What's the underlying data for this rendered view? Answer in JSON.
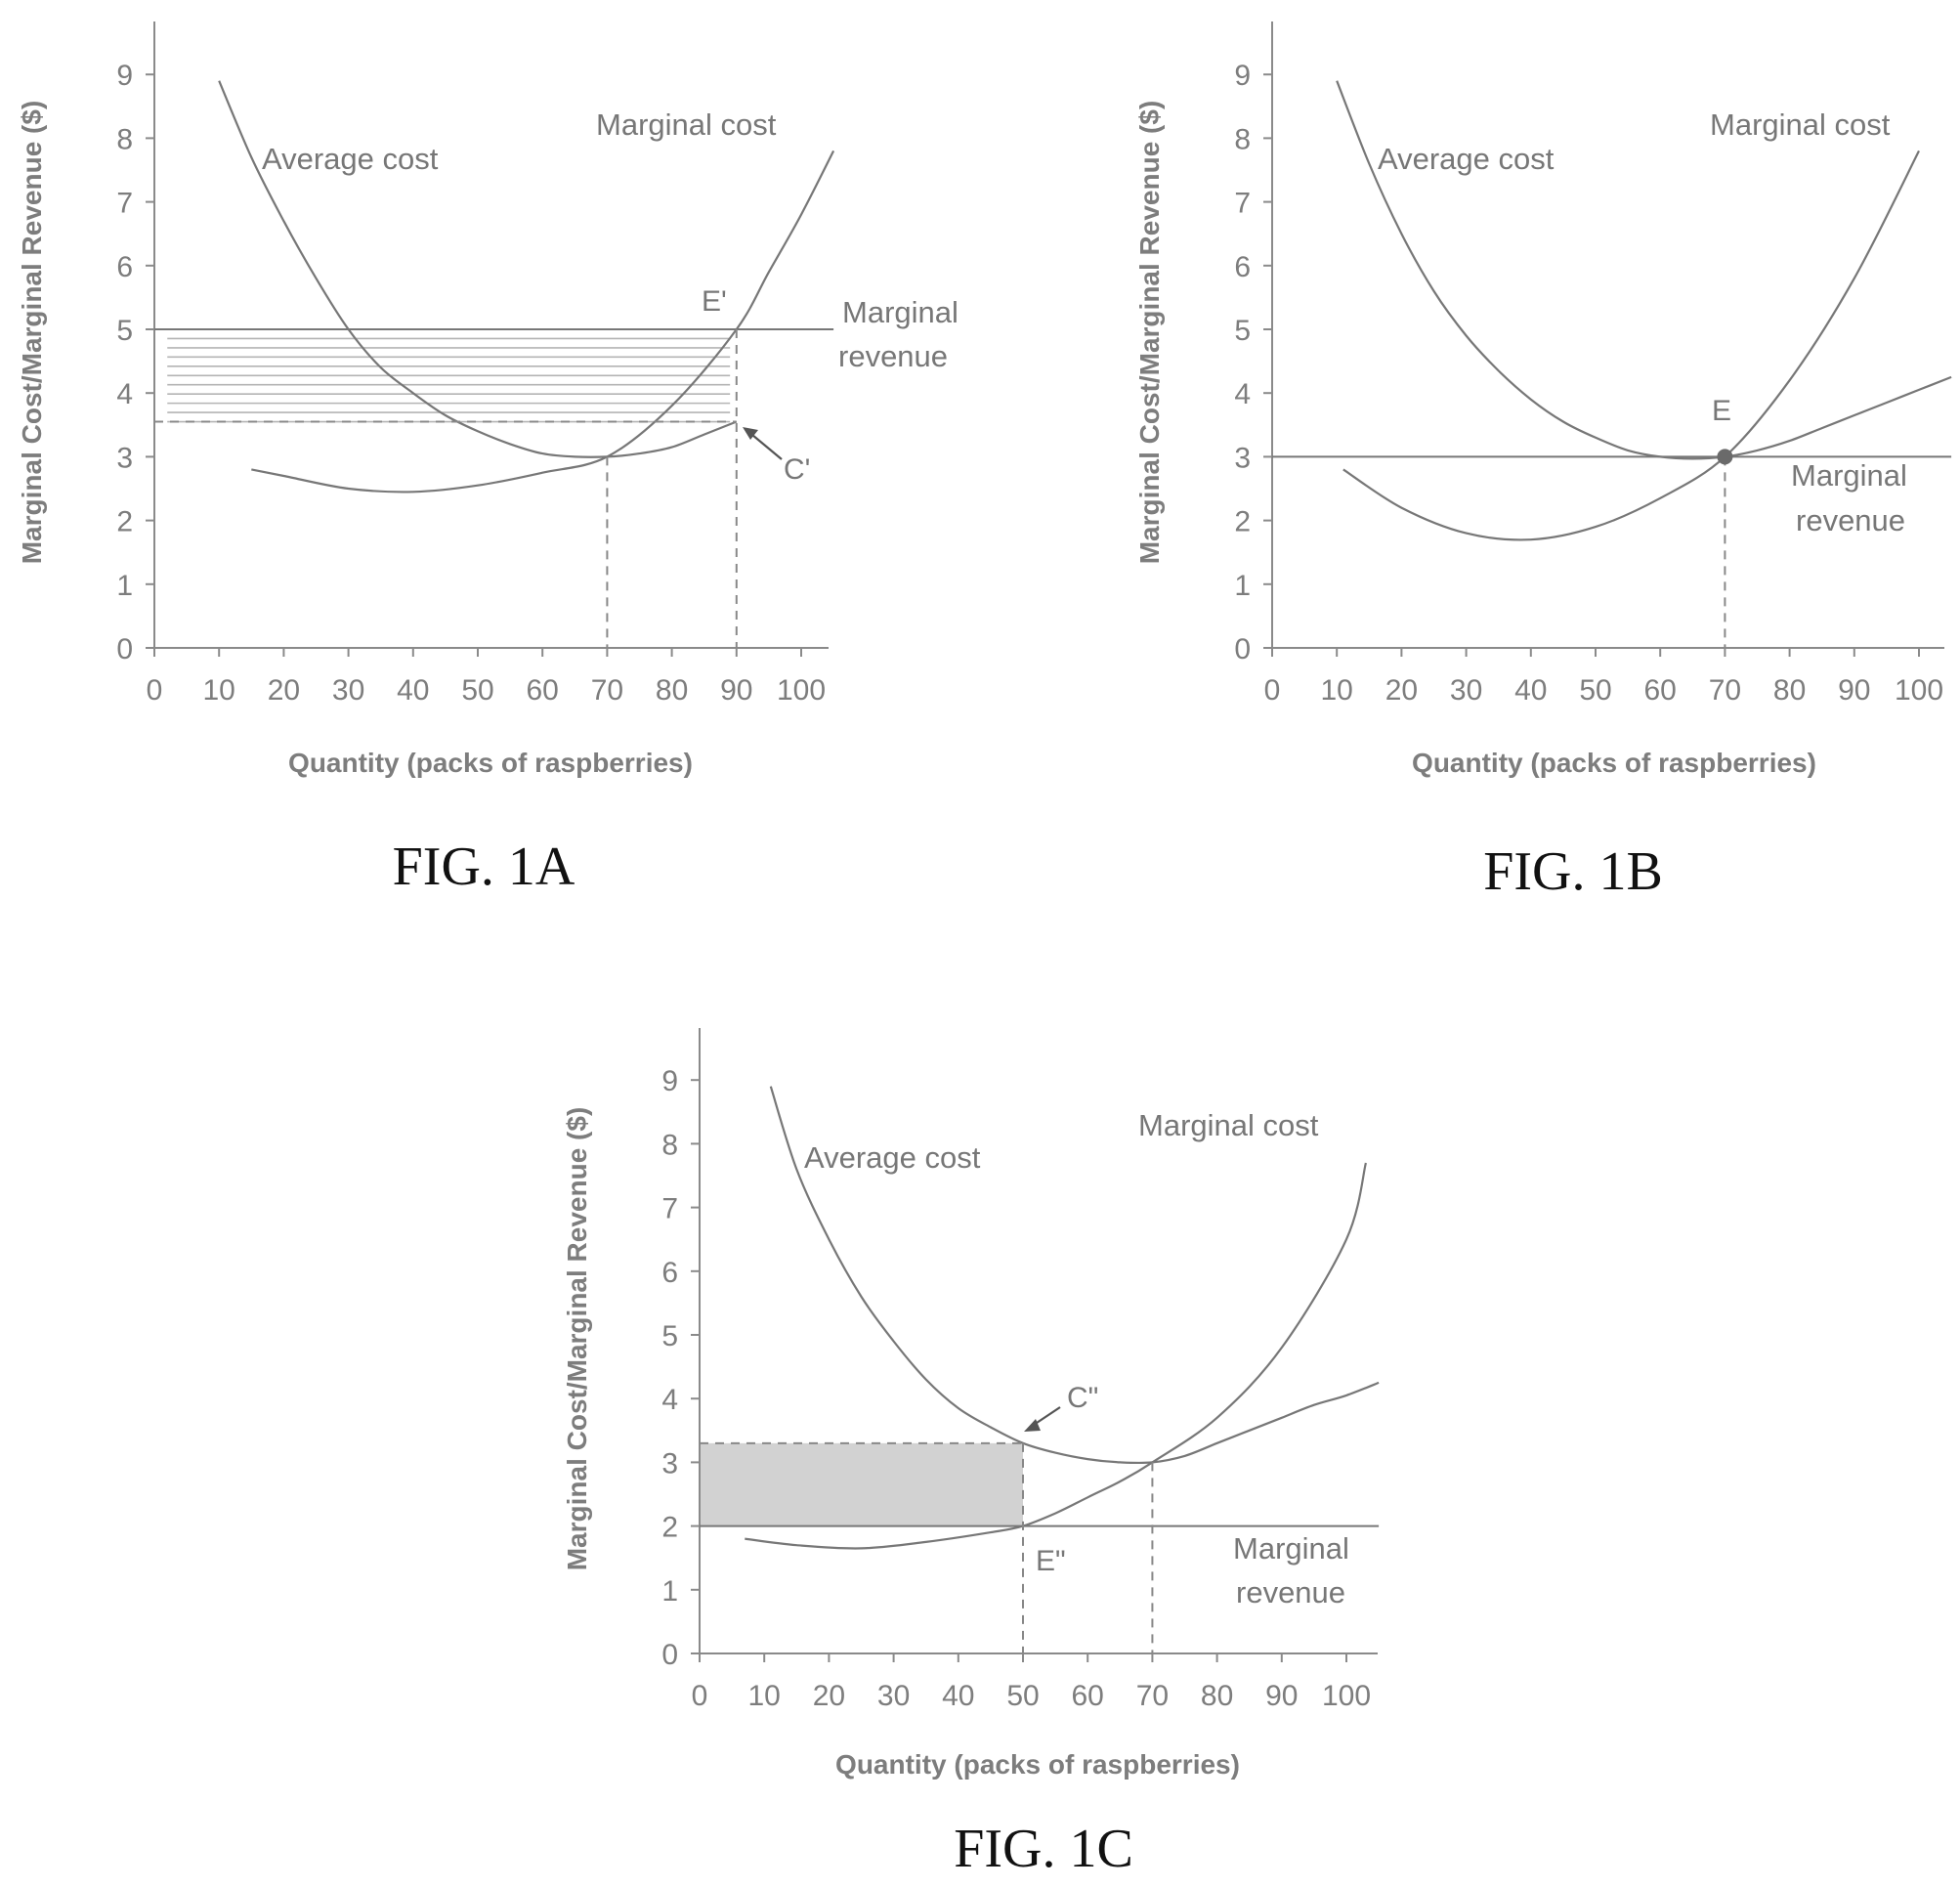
{
  "chart_data": [
    {
      "type": "line",
      "caption": "FIG. 1A",
      "xlabel": "Quantity (packs of raspberries)",
      "ylabel": "Marginal Cost/Marginal Revenue ($)",
      "xticks": [
        "0",
        "10",
        "20",
        "30",
        "40",
        "50",
        "60",
        "70",
        "80",
        "90",
        "100"
      ],
      "yticks": [
        "0",
        "1",
        "2",
        "3",
        "4",
        "5",
        "6",
        "7",
        "8",
        "9"
      ],
      "xlim": [
        0,
        105
      ],
      "ylim": [
        0,
        9.8
      ],
      "series": [
        {
          "name": "Average cost",
          "x": [
            10,
            15,
            20,
            25,
            30,
            35,
            40,
            45,
            50,
            55,
            60,
            65,
            70,
            75,
            80,
            85,
            90
          ],
          "y": [
            8.9,
            7.7,
            6.7,
            5.8,
            5.0,
            4.4,
            4.0,
            3.65,
            3.4,
            3.2,
            3.05,
            3.0,
            3.0,
            3.05,
            3.15,
            3.35,
            3.55
          ]
        },
        {
          "name": "Marginal cost",
          "x": [
            15,
            20,
            30,
            40,
            50,
            60,
            70,
            80,
            90,
            95,
            100,
            105
          ],
          "y": [
            2.8,
            2.7,
            2.5,
            2.45,
            2.55,
            2.75,
            3.0,
            3.8,
            5.0,
            5.9,
            6.8,
            7.8
          ]
        },
        {
          "name": "Marginal revenue",
          "x": [
            0,
            105
          ],
          "y": [
            5.0,
            5.0
          ]
        }
      ],
      "annotations": [
        {
          "text": "E'",
          "x": 90,
          "y": 5.0
        },
        {
          "text": "C'",
          "x": 90,
          "y": 3.55
        }
      ],
      "curve_labels": {
        "average_cost": "Average cost",
        "marginal_cost": "Marginal cost",
        "marginal_revenue_1": "Marginal",
        "marginal_revenue_2": "revenue"
      }
    },
    {
      "type": "line",
      "caption": "FIG. 1B",
      "xlabel": "Quantity (packs of raspberries)",
      "ylabel": "Marginal Cost/Marginal Revenue ($)",
      "xticks": [
        "0",
        "10",
        "20",
        "30",
        "40",
        "50",
        "60",
        "70",
        "80",
        "90",
        "100"
      ],
      "yticks": [
        "0",
        "1",
        "2",
        "3",
        "4",
        "5",
        "6",
        "7",
        "8",
        "9"
      ],
      "xlim": [
        0,
        105
      ],
      "ylim": [
        0,
        9.8
      ],
      "series": [
        {
          "name": "Average cost",
          "x": [
            10,
            15,
            20,
            25,
            30,
            35,
            40,
            45,
            50,
            55,
            60,
            65,
            70,
            75,
            80,
            85,
            90,
            95,
            100,
            105
          ],
          "y": [
            8.9,
            7.6,
            6.5,
            5.6,
            4.9,
            4.35,
            3.9,
            3.55,
            3.3,
            3.1,
            3.0,
            2.97,
            3.0,
            3.1,
            3.25,
            3.45,
            3.65,
            3.85,
            4.05,
            4.25
          ]
        },
        {
          "name": "Marginal cost",
          "x": [
            11,
            20,
            30,
            40,
            50,
            60,
            70,
            80,
            90,
            100
          ],
          "y": [
            2.8,
            2.2,
            1.8,
            1.7,
            1.9,
            2.35,
            3.0,
            4.2,
            5.8,
            7.8
          ]
        },
        {
          "name": "Marginal revenue",
          "x": [
            0,
            105
          ],
          "y": [
            3.0,
            3.0
          ]
        }
      ],
      "annotations": [
        {
          "text": "E",
          "x": 70,
          "y": 3.0
        }
      ],
      "curve_labels": {
        "average_cost": "Average cost",
        "marginal_cost": "Marginal cost",
        "marginal_revenue_1": "Marginal",
        "marginal_revenue_2": "revenue"
      }
    },
    {
      "type": "line",
      "caption": "FIG. 1C",
      "xlabel": "Quantity (packs of raspberries)",
      "ylabel": "Marginal Cost/Marginal Revenue ($)",
      "xticks": [
        "0",
        "10",
        "20",
        "30",
        "40",
        "50",
        "60",
        "70",
        "80",
        "90",
        "100"
      ],
      "yticks": [
        "0",
        "1",
        "2",
        "3",
        "4",
        "5",
        "6",
        "7",
        "8",
        "9"
      ],
      "xlim": [
        0,
        105
      ],
      "ylim": [
        0,
        9.8
      ],
      "series": [
        {
          "name": "Average cost",
          "x": [
            11,
            15,
            20,
            25,
            30,
            35,
            40,
            45,
            50,
            55,
            60,
            65,
            70,
            75,
            80,
            85,
            90,
            95,
            100,
            105
          ],
          "y": [
            8.9,
            7.6,
            6.5,
            5.6,
            4.9,
            4.3,
            3.85,
            3.55,
            3.3,
            3.15,
            3.05,
            3.0,
            3.0,
            3.1,
            3.3,
            3.5,
            3.7,
            3.9,
            4.05,
            4.25
          ]
        },
        {
          "name": "Marginal cost",
          "x": [
            7,
            15,
            25,
            35,
            45,
            50,
            55,
            60,
            65,
            70,
            80,
            90,
            100,
            103
          ],
          "y": [
            1.8,
            1.7,
            1.65,
            1.75,
            1.9,
            2.0,
            2.2,
            2.45,
            2.7,
            3.0,
            3.7,
            4.8,
            6.5,
            7.7
          ]
        },
        {
          "name": "Marginal revenue",
          "x": [
            0,
            105
          ],
          "y": [
            2.0,
            2.0
          ]
        }
      ],
      "annotations": [
        {
          "text": "C\"",
          "x": 50,
          "y": 3.3
        },
        {
          "text": "E\"",
          "x": 50,
          "y": 2.0
        }
      ],
      "curve_labels": {
        "average_cost": "Average cost",
        "marginal_cost": "Marginal cost",
        "marginal_revenue_1": "Marginal",
        "marginal_revenue_2": "revenue"
      }
    }
  ]
}
